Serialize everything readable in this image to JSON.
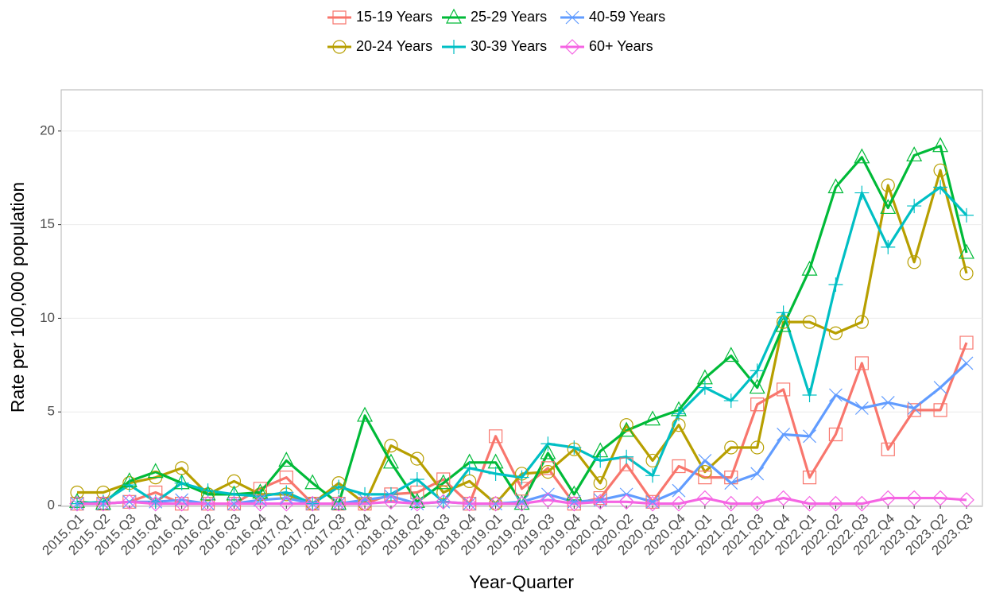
{
  "chart_data": {
    "type": "line",
    "x_label": "Year-Quarter",
    "y_label": "Rate per 100,000 population",
    "categories": [
      "2015.Q1",
      "2015.Q2",
      "2015.Q3",
      "2015.Q4",
      "2016.Q1",
      "2016.Q2",
      "2016.Q3",
      "2016.Q4",
      "2017.Q1",
      "2017.Q2",
      "2017.Q3",
      "2017.Q4",
      "2018.Q1",
      "2018.Q2",
      "2018.Q3",
      "2018.Q4",
      "2019.Q1",
      "2019.Q2",
      "2019.Q3",
      "2019.Q4",
      "2020.Q1",
      "2020.Q2",
      "2020.Q3",
      "2020.Q4",
      "2021.Q1",
      "2021.Q2",
      "2021.Q3",
      "2021.Q4",
      "2022.Q1",
      "2022.Q2",
      "2022.Q3",
      "2022.Q4",
      "2023.Q1",
      "2023.Q2",
      "2023.Q3"
    ],
    "series": [
      {
        "name": "15-19 Years",
        "color": "#F8766D",
        "marker": "square",
        "values": [
          0.1,
          0.1,
          0.2,
          0.7,
          0.1,
          0.1,
          0.1,
          0.9,
          1.5,
          0.1,
          0.1,
          0.1,
          0.6,
          0.7,
          1.4,
          0.1,
          3.7,
          0.9,
          2.0,
          0.1,
          0.4,
          2.2,
          0.2,
          2.1,
          1.5,
          1.5,
          5.4,
          6.2,
          1.5,
          3.8,
          7.6,
          3.0,
          5.1,
          5.1,
          8.7
        ]
      },
      {
        "name": "20-24 Years",
        "color": "#B79F00",
        "marker": "circle",
        "values": [
          0.7,
          0.7,
          1.2,
          1.5,
          2.0,
          0.6,
          1.3,
          0.6,
          0.6,
          0.1,
          1.2,
          0.1,
          3.2,
          2.5,
          0.7,
          1.3,
          0.1,
          1.7,
          1.8,
          3.0,
          1.2,
          4.3,
          2.4,
          4.3,
          1.8,
          3.1,
          3.1,
          9.8,
          9.8,
          9.2,
          9.8,
          17.1,
          13.0,
          17.9,
          12.4
        ]
      },
      {
        "name": "25-29 Years",
        "color": "#00BA38",
        "marker": "triangle",
        "values": [
          0.2,
          0.1,
          1.3,
          1.8,
          1.2,
          0.6,
          0.6,
          0.7,
          2.4,
          1.2,
          0.1,
          4.8,
          2.3,
          0.2,
          1.2,
          2.3,
          2.3,
          0.1,
          2.8,
          0.6,
          2.9,
          4.0,
          4.6,
          5.1,
          6.8,
          8.0,
          6.3,
          9.6,
          12.6,
          17.0,
          18.6,
          15.9,
          18.7,
          19.2,
          13.5
        ]
      },
      {
        "name": "30-39 Years",
        "color": "#00BFC4",
        "marker": "plus",
        "values": [
          0.1,
          0.2,
          1.1,
          0.2,
          1.2,
          0.8,
          0.6,
          0.5,
          0.7,
          0.1,
          1.0,
          0.6,
          0.6,
          1.4,
          0.2,
          2.0,
          1.7,
          1.5,
          3.3,
          3.1,
          2.4,
          2.6,
          1.6,
          4.9,
          6.3,
          5.6,
          7.2,
          10.3,
          5.9,
          11.8,
          16.7,
          13.8,
          16.0,
          17.0,
          15.5
        ]
      },
      {
        "name": "40-59 Years",
        "color": "#619CFF",
        "marker": "x",
        "values": [
          0.1,
          0.1,
          0.2,
          0.2,
          0.3,
          0.1,
          0.1,
          0.3,
          0.4,
          0.1,
          0.1,
          0.3,
          0.5,
          0.1,
          0.2,
          0.1,
          0.1,
          0.2,
          0.6,
          0.2,
          0.3,
          0.6,
          0.2,
          0.8,
          2.4,
          1.2,
          1.7,
          3.8,
          3.7,
          5.9,
          5.2,
          5.5,
          5.2,
          6.3,
          7.6
        ]
      },
      {
        "name": "60+ Years",
        "color": "#F564E3",
        "marker": "diamond",
        "values": [
          0.1,
          0.1,
          0.2,
          0.1,
          0.1,
          0.1,
          0.1,
          0.1,
          0.1,
          0.1,
          0.1,
          0.1,
          0.2,
          0.1,
          0.2,
          0.1,
          0.1,
          0.1,
          0.3,
          0.1,
          0.2,
          0.2,
          0.1,
          0.1,
          0.4,
          0.1,
          0.1,
          0.4,
          0.1,
          0.1,
          0.1,
          0.4,
          0.4,
          0.4,
          0.3
        ]
      }
    ],
    "ylim": [
      0,
      22.2
    ],
    "yticks": [
      0,
      5,
      10,
      15,
      20
    ],
    "grid": true,
    "legend": "top"
  }
}
